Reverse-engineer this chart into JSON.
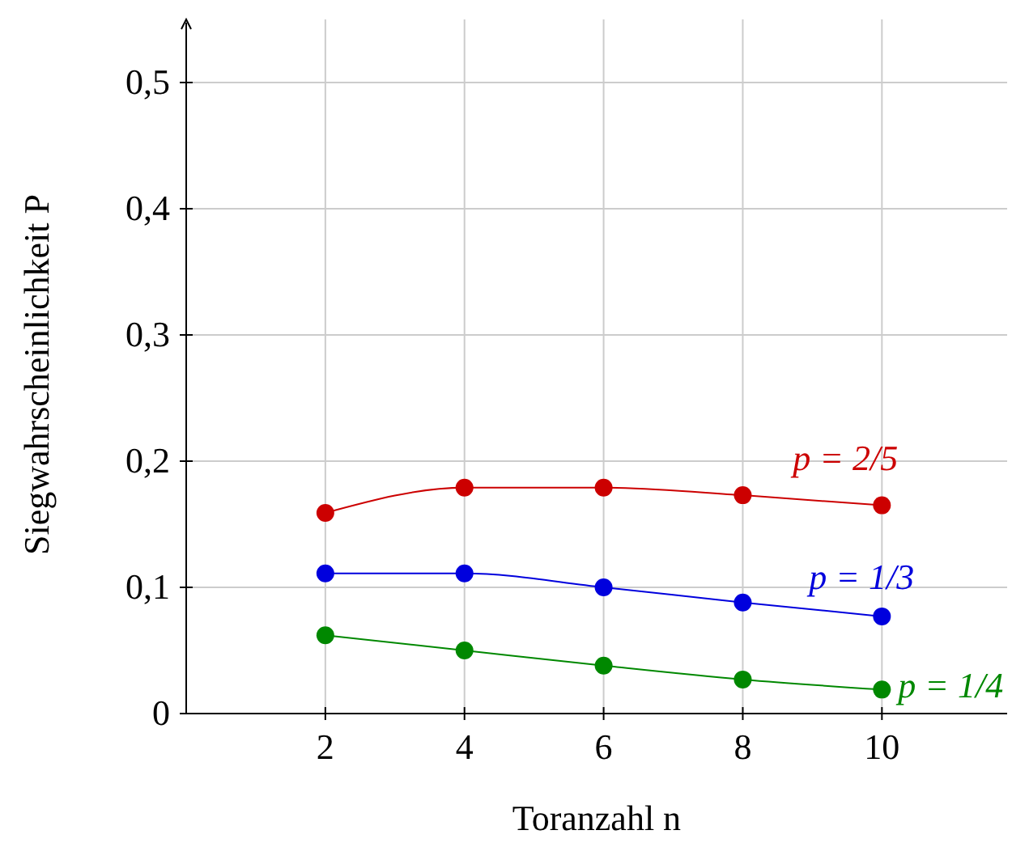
{
  "chart_data": {
    "type": "line",
    "xlabel": "Toranzahl n",
    "ylabel": "Siegwahrscheinlichkeit P",
    "x": [
      2,
      4,
      6,
      8,
      10
    ],
    "series": [
      {
        "name": "p = 2/5",
        "color": "#cc0000",
        "values": [
          0.159,
          0.179,
          0.179,
          0.173,
          0.165
        ]
      },
      {
        "name": "p = 1/3",
        "color": "#0000dd",
        "values": [
          0.111,
          0.111,
          0.1,
          0.088,
          0.077
        ]
      },
      {
        "name": "p = 1/4",
        "color": "#008800",
        "values": [
          0.062,
          0.05,
          0.038,
          0.027,
          0.019
        ]
      }
    ],
    "xlim": [
      0,
      11.8
    ],
    "ylim": [
      0,
      0.55
    ],
    "xticks": [
      2,
      4,
      6,
      8,
      10
    ],
    "yticks": [
      {
        "value": 0,
        "label": "0"
      },
      {
        "value": 0.1,
        "label": "0,1"
      },
      {
        "value": 0.2,
        "label": "0,2"
      },
      {
        "value": 0.3,
        "label": "0,3"
      },
      {
        "value": 0.4,
        "label": "0,4"
      },
      {
        "value": 0.5,
        "label": "0,5"
      }
    ],
    "grid": true,
    "marker": "circle"
  }
}
